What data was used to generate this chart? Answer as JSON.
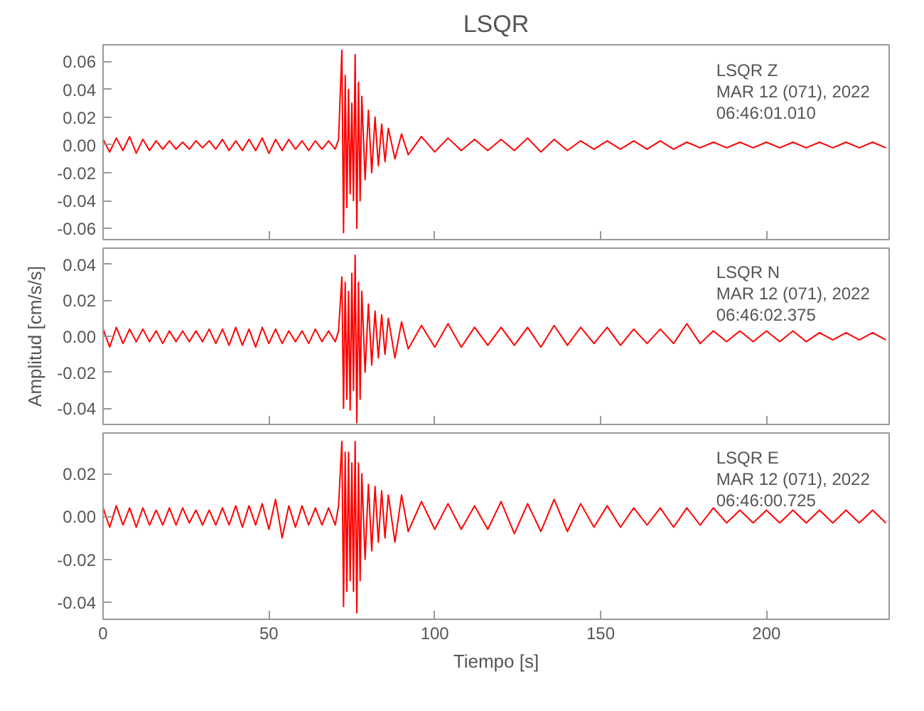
{
  "chart_data": [
    {
      "type": "line",
      "title": "LSQR",
      "tick_labels": "y",
      "xlim": [
        0,
        237
      ],
      "ylim": [
        -0.068,
        0.072
      ],
      "xticks": [
        0,
        50,
        100,
        150,
        200
      ],
      "yticks": [
        {
          "value": -0.06,
          "label": "-0.06"
        },
        {
          "value": -0.04,
          "label": "-0.04"
        },
        {
          "value": -0.02,
          "label": "-0.02"
        },
        {
          "value": 0,
          "label": "0.00"
        },
        {
          "value": 0.02,
          "label": "0.02"
        },
        {
          "value": 0.04,
          "label": "0.04"
        },
        {
          "value": 0.06,
          "label": "0.06"
        }
      ],
      "annotations": [
        "LSQR   Z",
        "MAR 12 (071), 2022",
        "06:46:01.010"
      ],
      "x": [
        0,
        2,
        4,
        6,
        8,
        10,
        12,
        14,
        16,
        18,
        20,
        22,
        24,
        26,
        28,
        30,
        32,
        34,
        36,
        38,
        40,
        42,
        44,
        46,
        48,
        50,
        52,
        54,
        56,
        58,
        60,
        62,
        64,
        66,
        68,
        70,
        71,
        72,
        72.5,
        73,
        73.5,
        74,
        74.5,
        75,
        75.5,
        76,
        76.5,
        77,
        77.5,
        78,
        79,
        80,
        81,
        82,
        83,
        84,
        85,
        86,
        88,
        90,
        92,
        96,
        100,
        104,
        108,
        112,
        116,
        120,
        124,
        128,
        132,
        136,
        140,
        144,
        148,
        152,
        156,
        160,
        164,
        168,
        172,
        176,
        180,
        184,
        188,
        192,
        196,
        200,
        204,
        208,
        212,
        216,
        220,
        224,
        228,
        232,
        236
      ],
      "series": [
        {
          "color": "#ff0000",
          "values": [
            0.004,
            -0.005,
            0.005,
            -0.004,
            0.006,
            -0.006,
            0.004,
            -0.004,
            0.003,
            -0.003,
            0.003,
            -0.003,
            0.002,
            -0.003,
            0.003,
            -0.002,
            0.003,
            -0.003,
            0.004,
            -0.004,
            0.003,
            -0.004,
            0.004,
            -0.004,
            0.005,
            -0.006,
            0.004,
            -0.004,
            0.004,
            -0.003,
            0.003,
            -0.004,
            0.003,
            -0.003,
            0.003,
            -0.003,
            0.004,
            0.068,
            -0.063,
            0.05,
            -0.045,
            0.04,
            -0.035,
            0.03,
            -0.04,
            0.065,
            -0.06,
            0.045,
            -0.04,
            0.035,
            -0.025,
            0.025,
            -0.02,
            0.02,
            -0.015,
            0.015,
            -0.012,
            0.012,
            -0.01,
            0.008,
            -0.007,
            0.006,
            -0.005,
            0.005,
            -0.004,
            0.004,
            -0.004,
            0.004,
            -0.004,
            0.005,
            -0.005,
            0.004,
            -0.004,
            0.003,
            -0.003,
            0.003,
            -0.003,
            0.003,
            -0.003,
            0.003,
            -0.003,
            0.002,
            -0.002,
            0.002,
            -0.002,
            0.002,
            -0.002,
            0.002,
            -0.002,
            0.002,
            -0.002,
            0.002,
            -0.002,
            0.002,
            -0.002,
            0.002,
            -0.002
          ]
        }
      ]
    },
    {
      "type": "line",
      "ylabel": "Amplitud [cm/s/s]",
      "tick_labels": "y",
      "xlim": [
        0,
        237
      ],
      "ylim": [
        -0.049,
        0.049
      ],
      "xticks": [
        0,
        50,
        100,
        150,
        200
      ],
      "yticks": [
        {
          "value": -0.04,
          "label": "-0.04"
        },
        {
          "value": -0.02,
          "label": "-0.02"
        },
        {
          "value": 0,
          "label": "0.00"
        },
        {
          "value": 0.02,
          "label": "0.02"
        },
        {
          "value": 0.04,
          "label": "0.04"
        }
      ],
      "annotations": [
        "LSQR   N",
        "MAR 12 (071), 2022",
        "06:46:02.375"
      ],
      "x": [
        0,
        2,
        4,
        6,
        8,
        10,
        12,
        14,
        16,
        18,
        20,
        22,
        24,
        26,
        28,
        30,
        32,
        34,
        36,
        38,
        40,
        42,
        44,
        46,
        48,
        50,
        52,
        54,
        56,
        58,
        60,
        62,
        64,
        66,
        68,
        70,
        71,
        72,
        72.5,
        73,
        73.5,
        74,
        74.5,
        75,
        75.5,
        76,
        76.5,
        77,
        77.5,
        78,
        79,
        80,
        81,
        82,
        83,
        84,
        85,
        86,
        88,
        90,
        92,
        96,
        100,
        104,
        108,
        112,
        116,
        120,
        124,
        128,
        132,
        136,
        140,
        144,
        148,
        152,
        156,
        160,
        164,
        168,
        172,
        176,
        180,
        184,
        188,
        192,
        196,
        200,
        204,
        208,
        212,
        216,
        220,
        224,
        228,
        232,
        236
      ],
      "series": [
        {
          "color": "#ff0000",
          "values": [
            0.004,
            -0.006,
            0.005,
            -0.004,
            0.004,
            -0.003,
            0.004,
            -0.003,
            0.003,
            -0.004,
            0.003,
            -0.003,
            0.003,
            -0.003,
            0.003,
            -0.003,
            0.004,
            -0.004,
            0.004,
            -0.005,
            0.005,
            -0.005,
            0.004,
            -0.006,
            0.005,
            -0.004,
            0.004,
            -0.004,
            0.003,
            -0.003,
            0.003,
            -0.004,
            0.004,
            -0.003,
            0.003,
            -0.003,
            0.003,
            0.033,
            -0.04,
            0.03,
            -0.035,
            0.025,
            -0.041,
            0.035,
            -0.03,
            0.045,
            -0.048,
            0.03,
            -0.035,
            0.025,
            -0.02,
            0.018,
            -0.016,
            0.014,
            -0.012,
            0.012,
            -0.01,
            0.01,
            -0.012,
            0.008,
            -0.007,
            0.006,
            -0.006,
            0.007,
            -0.006,
            0.005,
            -0.005,
            0.005,
            -0.005,
            0.005,
            -0.006,
            0.006,
            -0.005,
            0.005,
            -0.004,
            0.005,
            -0.005,
            0.004,
            -0.004,
            0.004,
            -0.004,
            0.007,
            -0.004,
            0.003,
            -0.003,
            0.003,
            -0.003,
            0.003,
            -0.003,
            0.003,
            -0.003,
            0.002,
            -0.002,
            0.002,
            -0.002,
            0.002,
            -0.002
          ]
        }
      ]
    },
    {
      "type": "line",
      "xlabel": "Tiempo [s]",
      "xlim": [
        0,
        237
      ],
      "ylim": [
        -0.048,
        0.039
      ],
      "xticks": [
        0,
        50,
        100,
        150,
        200
      ],
      "yticks": [
        {
          "value": -0.04,
          "label": "-0.04"
        },
        {
          "value": -0.02,
          "label": "-0.02"
        },
        {
          "value": 0,
          "label": "0.00"
        },
        {
          "value": 0.02,
          "label": "0.02"
        }
      ],
      "annotations": [
        "LSQR   E",
        "MAR 12 (071), 2022",
        "06:46:00.725"
      ],
      "x": [
        0,
        2,
        4,
        6,
        8,
        10,
        12,
        14,
        16,
        18,
        20,
        22,
        24,
        26,
        28,
        30,
        32,
        34,
        36,
        38,
        40,
        42,
        44,
        46,
        48,
        50,
        52,
        54,
        56,
        58,
        60,
        62,
        64,
        66,
        68,
        70,
        71,
        72,
        72.5,
        73,
        73.5,
        74,
        74.5,
        75,
        75.5,
        76,
        76.5,
        77,
        77.5,
        78,
        79,
        80,
        81,
        82,
        83,
        84,
        85,
        86,
        88,
        90,
        92,
        96,
        100,
        104,
        108,
        112,
        116,
        120,
        124,
        128,
        132,
        136,
        140,
        144,
        148,
        152,
        156,
        160,
        164,
        168,
        172,
        176,
        180,
        184,
        188,
        192,
        196,
        200,
        204,
        208,
        212,
        216,
        220,
        224,
        228,
        232,
        236
      ],
      "series": [
        {
          "color": "#ff0000",
          "values": [
            0.004,
            -0.005,
            0.005,
            -0.004,
            0.004,
            -0.005,
            0.004,
            -0.004,
            0.003,
            -0.004,
            0.004,
            -0.004,
            0.004,
            -0.003,
            0.003,
            -0.004,
            0.003,
            -0.004,
            0.004,
            -0.004,
            0.005,
            -0.005,
            0.005,
            -0.004,
            0.006,
            -0.006,
            0.008,
            -0.01,
            0.005,
            -0.005,
            0.005,
            -0.004,
            0.004,
            -0.004,
            0.004,
            -0.004,
            0.005,
            0.035,
            -0.042,
            0.03,
            -0.035,
            0.03,
            -0.03,
            0.025,
            -0.035,
            0.035,
            -0.045,
            0.025,
            -0.03,
            0.02,
            -0.02,
            0.015,
            -0.016,
            0.014,
            -0.012,
            0.012,
            -0.01,
            0.01,
            -0.012,
            0.01,
            -0.007,
            0.007,
            -0.006,
            0.006,
            -0.006,
            0.005,
            -0.006,
            0.007,
            -0.008,
            0.006,
            -0.007,
            0.008,
            -0.007,
            0.006,
            -0.005,
            0.005,
            -0.005,
            0.004,
            -0.004,
            0.004,
            -0.005,
            0.004,
            -0.004,
            0.004,
            -0.003,
            0.003,
            -0.003,
            0.003,
            -0.003,
            0.003,
            -0.003,
            0.003,
            -0.003,
            0.003,
            -0.003,
            0.003,
            -0.003
          ]
        }
      ]
    }
  ]
}
